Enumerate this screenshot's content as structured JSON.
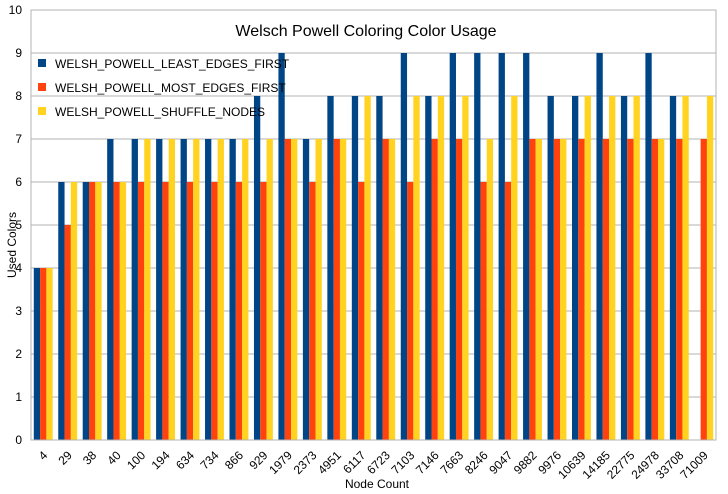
{
  "chart_data": {
    "type": "bar",
    "title": "Welsch Powell Coloring Color Usage",
    "xlabel": "Node Count",
    "ylabel": "Used Colors",
    "ylim": [
      0,
      10
    ],
    "yticks": [
      "0",
      "1",
      "2",
      "3",
      "4",
      "5",
      "6",
      "7",
      "8",
      "9",
      "10"
    ],
    "grid": true,
    "legend_position": "top-left",
    "categories": [
      "4",
      "29",
      "38",
      "40",
      "100",
      "194",
      "634",
      "734",
      "866",
      "929",
      "1979",
      "2373",
      "4951",
      "6117",
      "6723",
      "7103",
      "7146",
      "7663",
      "8246",
      "9047",
      "9882",
      "9976",
      "10639",
      "14185",
      "22775",
      "24978",
      "33708",
      "71009"
    ],
    "series": [
      {
        "name": "WELSH_POWELL_LEAST_EDGES_FIRST",
        "color": "#004586",
        "values": [
          4,
          6,
          6,
          7,
          7,
          7,
          7,
          7,
          7,
          8,
          9,
          7,
          8,
          8,
          8,
          9,
          8,
          9,
          9,
          9,
          9,
          8,
          8,
          9,
          8,
          9,
          8,
          null
        ]
      },
      {
        "name": "WELSH_POWELL_MOST_EDGES_FIRST",
        "color": "#ff420e",
        "values": [
          4,
          5,
          6,
          6,
          6,
          6,
          6,
          6,
          6,
          6,
          7,
          6,
          7,
          6,
          7,
          6,
          7,
          7,
          6,
          6,
          7,
          7,
          7,
          7,
          7,
          7,
          7,
          7
        ]
      },
      {
        "name": "WELSH_POWELL_SHUFFLE_NODES",
        "color": "#ffd320",
        "values": [
          4,
          6,
          6,
          6,
          7,
          7,
          7,
          7,
          7,
          7,
          7,
          7,
          7,
          8,
          7,
          8,
          8,
          8,
          7,
          8,
          7,
          7,
          8,
          8,
          8,
          7,
          8,
          8
        ]
      }
    ]
  }
}
